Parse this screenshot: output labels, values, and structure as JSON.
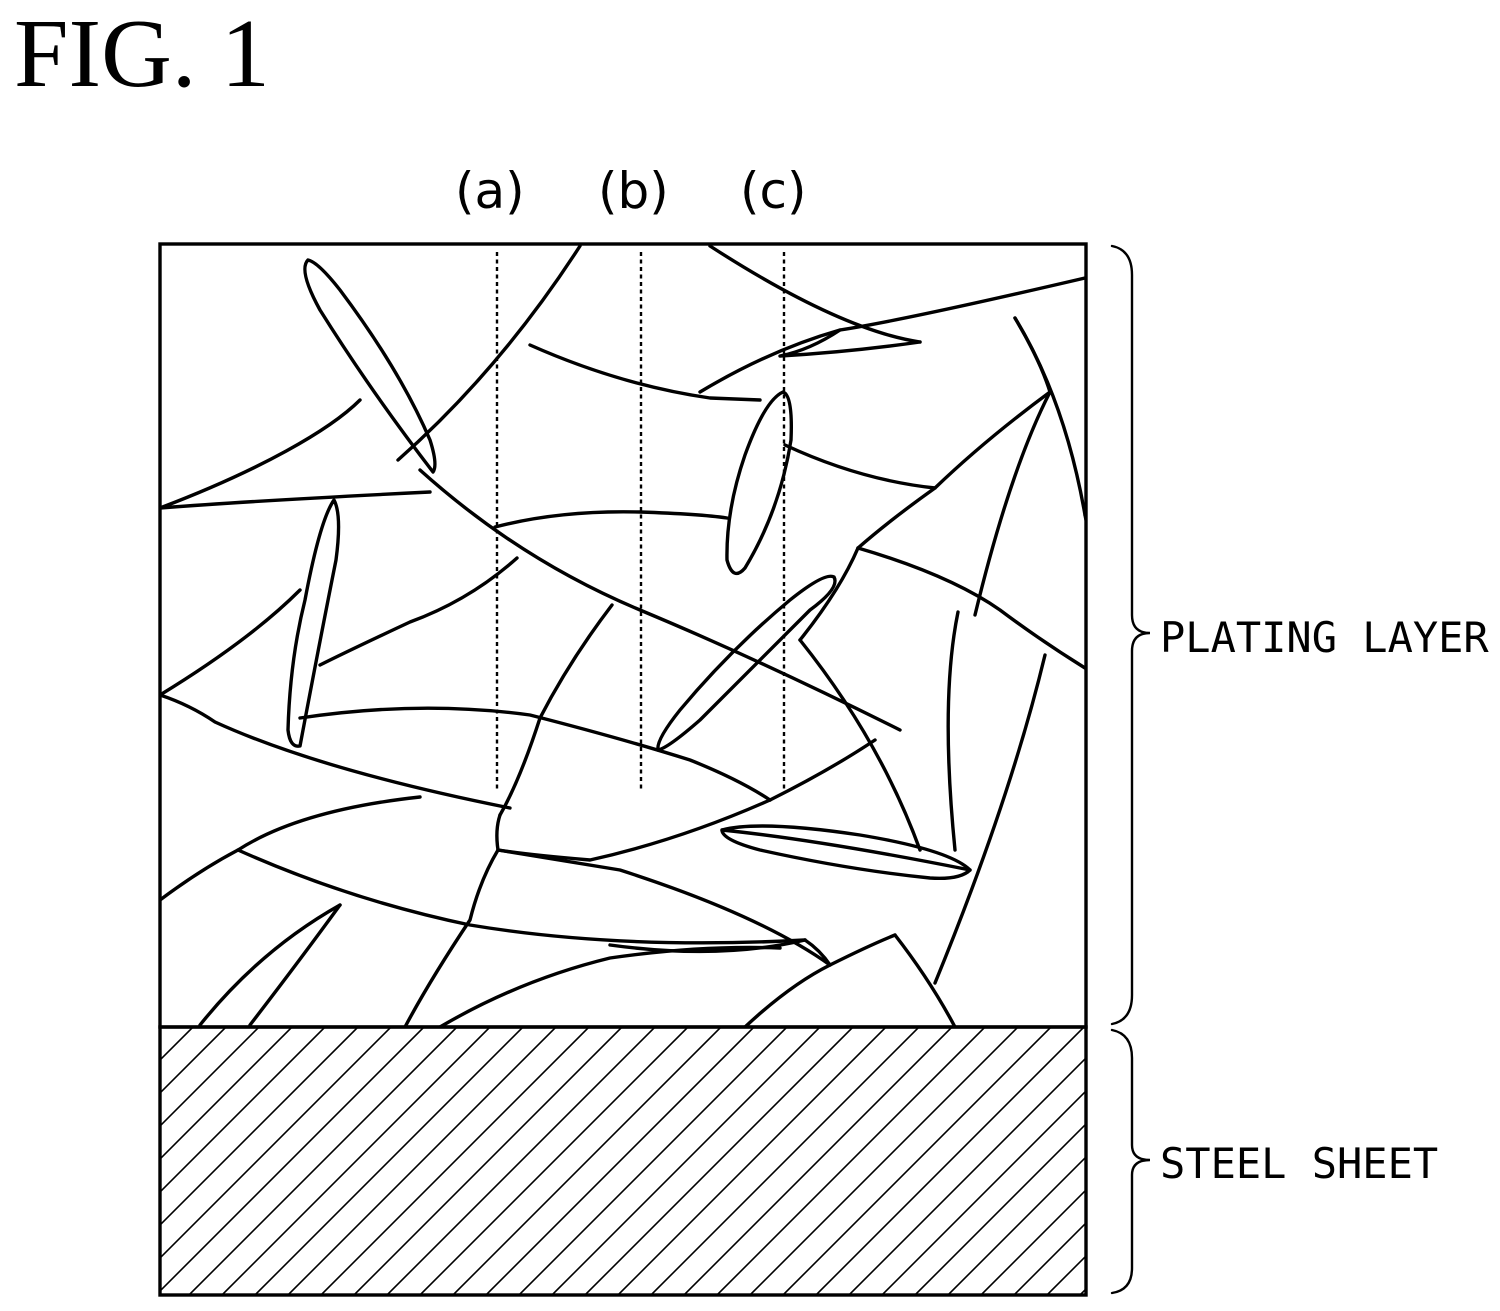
{
  "figure": {
    "title": "FIG. 1"
  },
  "probes": [
    {
      "label": "(a)"
    },
    {
      "label": "(b)"
    },
    {
      "label": "(c)"
    }
  ],
  "layers": {
    "plating": "PLATING LAYER",
    "steel": "STEEL SHEET"
  },
  "colors": {
    "line": "#000000",
    "background": "#ffffff"
  }
}
